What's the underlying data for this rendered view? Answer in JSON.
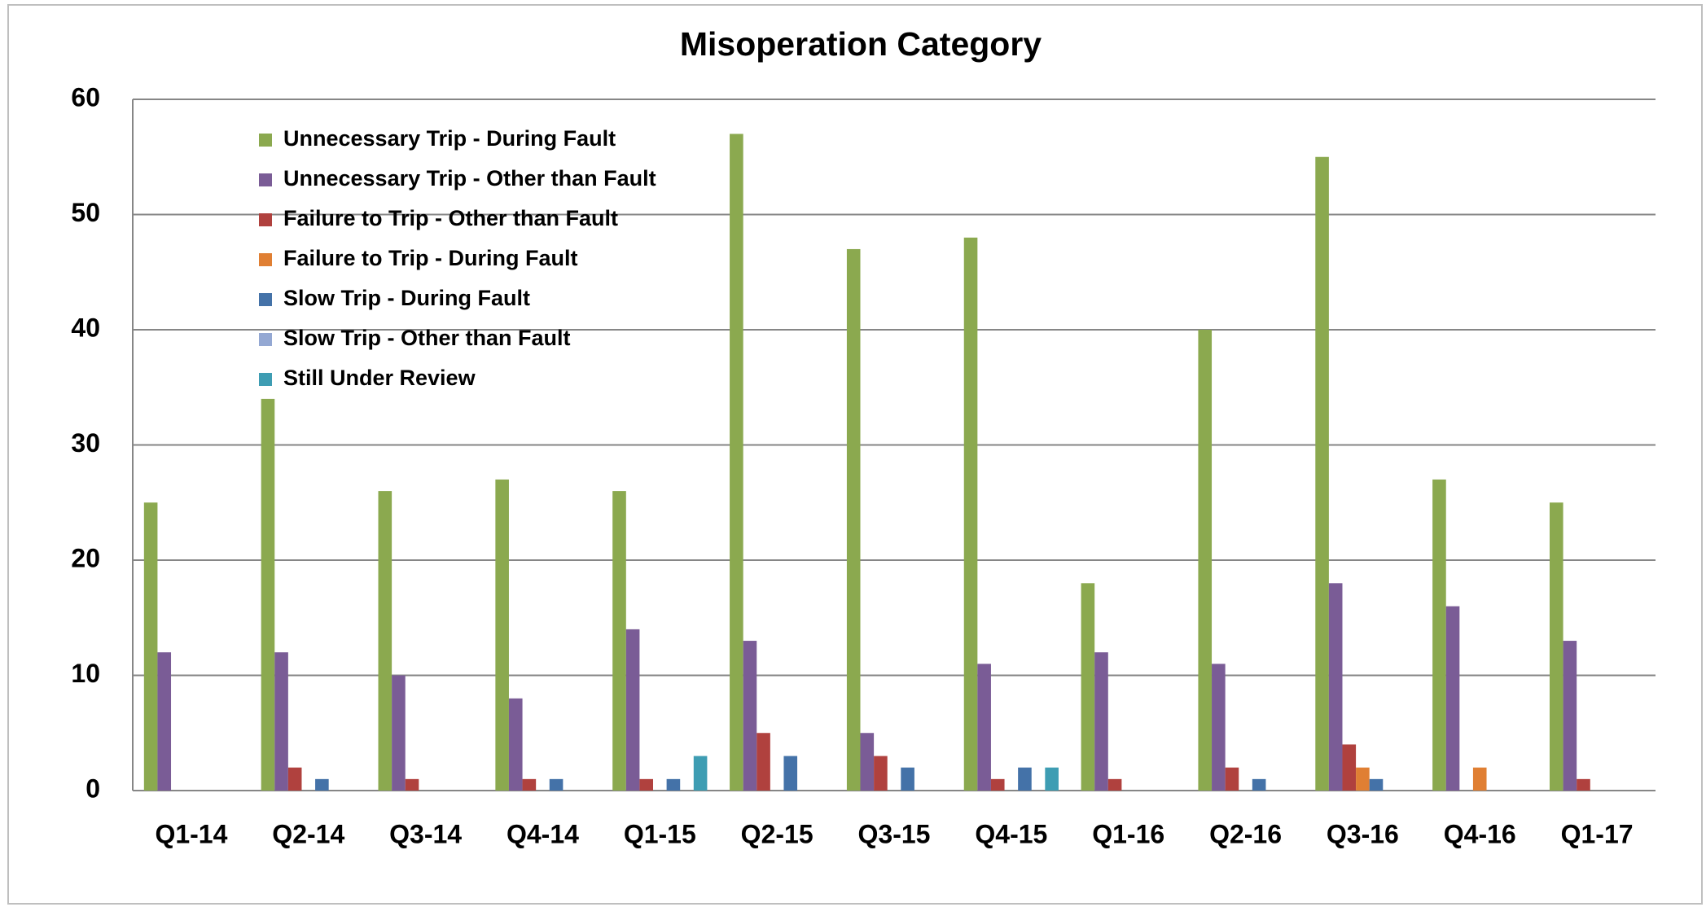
{
  "chart_data": {
    "type": "bar",
    "title": "Misoperation Category",
    "categories": [
      "Q1-14",
      "Q2-14",
      "Q3-14",
      "Q4-14",
      "Q1-15",
      "Q2-15",
      "Q3-15",
      "Q4-15",
      "Q1-16",
      "Q2-16",
      "Q3-16",
      "Q4-16",
      "Q1-17"
    ],
    "series": [
      {
        "name": "Unnecessary Trip - During Fault",
        "color": "#8BA94F",
        "values": [
          25,
          34,
          26,
          27,
          26,
          57,
          47,
          48,
          18,
          40,
          55,
          27,
          25
        ]
      },
      {
        "name": "Unnecessary Trip - Other than Fault",
        "color": "#7A5C96",
        "values": [
          12,
          12,
          10,
          8,
          14,
          13,
          5,
          11,
          12,
          11,
          18,
          16,
          13
        ]
      },
      {
        "name": "Failure to Trip - Other than Fault",
        "color": "#B0413E",
        "values": [
          0,
          2,
          1,
          1,
          1,
          5,
          3,
          1,
          1,
          2,
          4,
          0,
          1
        ]
      },
      {
        "name": "Failure to Trip - During Fault",
        "color": "#E07F33",
        "values": [
          0,
          0,
          0,
          0,
          0,
          0,
          0,
          0,
          0,
          0,
          2,
          2,
          0
        ]
      },
      {
        "name": "Slow Trip - During Fault",
        "color": "#4472A8",
        "values": [
          0,
          1,
          0,
          1,
          1,
          3,
          2,
          2,
          0,
          1,
          1,
          0,
          0
        ]
      },
      {
        "name": "Slow Trip - Other than Fault",
        "color": "#94A8D3",
        "values": [
          0,
          0,
          0,
          0,
          0,
          0,
          0,
          0,
          0,
          0,
          0,
          0,
          0
        ]
      },
      {
        "name": "Still Under Review",
        "color": "#3E9DB3",
        "values": [
          0,
          0,
          0,
          0,
          3,
          0,
          0,
          2,
          0,
          0,
          0,
          0,
          0
        ]
      }
    ],
    "ylim": [
      0,
      60
    ],
    "yticks": [
      0,
      10,
      20,
      30,
      40,
      50,
      60
    ],
    "grid": true,
    "legend": "top-left"
  }
}
